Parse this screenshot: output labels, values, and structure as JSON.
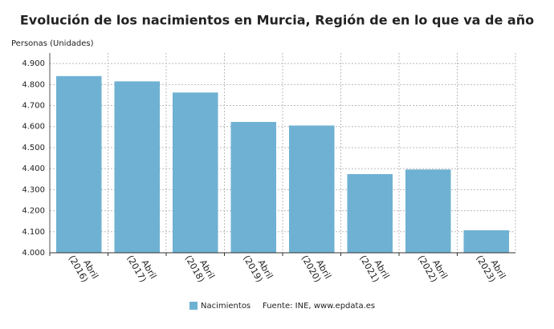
{
  "chart_data": {
    "type": "bar",
    "title": "Evolución de los nacimientos en Murcia, Región de en lo que va de año",
    "y_label": "Personas (Unidades)",
    "categories": [
      "Abril (2016)",
      "Abril (2017)",
      "Abril (2018)",
      "Abril (2019)",
      "Abril (2020)",
      "Abril (2021)",
      "Abril (2022)",
      "Abril (2023)"
    ],
    "series": [
      {
        "name": "Nacimientos",
        "color": "#6fb1d3",
        "values": [
          4840,
          4815,
          4762,
          4622,
          4605,
          4374,
          4396,
          4107
        ]
      }
    ],
    "ylim": [
      4000,
      4950
    ],
    "yticks": [
      {
        "value": 4000,
        "label": "4.000"
      },
      {
        "value": 4100,
        "label": "4.100"
      },
      {
        "value": 4200,
        "label": "4.200"
      },
      {
        "value": 4300,
        "label": "4.300"
      },
      {
        "value": 4400,
        "label": "4.400"
      },
      {
        "value": 4500,
        "label": "4.500"
      },
      {
        "value": 4600,
        "label": "4.600"
      },
      {
        "value": 4700,
        "label": "4.700"
      },
      {
        "value": 4800,
        "label": "4.800"
      },
      {
        "value": 4900,
        "label": "4.900"
      }
    ],
    "grid": true,
    "source": "Fuente: INE, www.epdata.es"
  }
}
